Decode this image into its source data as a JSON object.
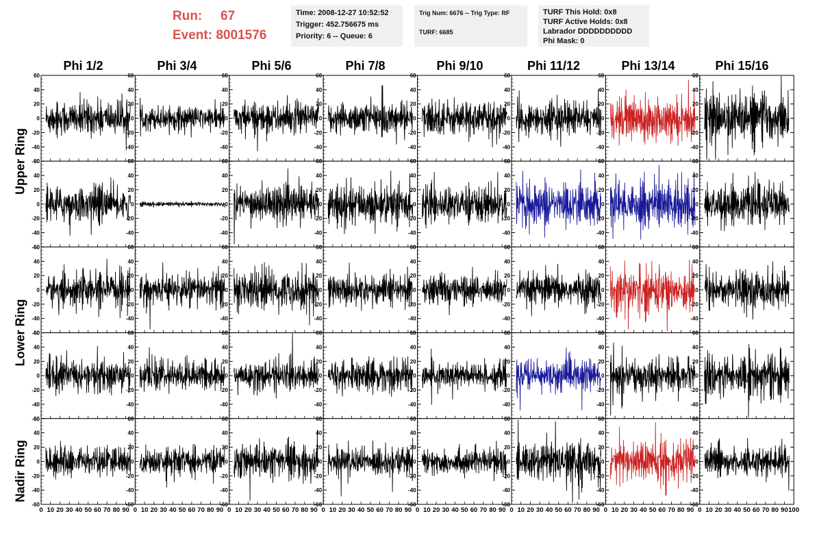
{
  "header": {
    "run_label": "Run:",
    "run_value": "67",
    "event_label": "Event:",
    "event_value": "8001576",
    "time": "Time: 2008-12-27 10:52:52",
    "trigger": "Trigger: 452.756675 ms",
    "priority": "Priority: 6 -- Queue: 6",
    "trig_num": "Trig Num: 6676 -- Trig Type: RF",
    "turf": "TURF: 6685",
    "turf_hold": "TURF This Hold: 0x8",
    "turf_active": "TURF Active Holds: 0x8",
    "labrador": "Labrador DDDDDDDDDD",
    "phi_mask": "Phi Mask: 0"
  },
  "columns": [
    "Phi 1/2",
    "Phi 3/4",
    "Phi 5/6",
    "Phi 7/8",
    "Phi 9/10",
    "Phi 11/12",
    "Phi 13/14",
    "Phi 15/16"
  ],
  "ring_labels": [
    "Upper Ring",
    "Lower Ring",
    "Nadir Ring"
  ],
  "colors": {
    "normal": "#000000",
    "triggered_red": "#cc2222",
    "triggered_blue": "#1a1a99",
    "run_text": "#d9534f"
  },
  "chart_data": {
    "type": "line",
    "rows": 5,
    "cols": 8,
    "ylim": [
      -60,
      60
    ],
    "xlim": [
      0,
      100
    ],
    "y_ticks": [
      -60,
      -40,
      -20,
      0,
      20,
      40,
      60
    ],
    "x_ticks": [
      0,
      10,
      20,
      30,
      40,
      50,
      60,
      70,
      80,
      90,
      100
    ],
    "x_tick_labels": [
      "0",
      "10",
      "20",
      "30",
      "40",
      "50",
      "60",
      "70",
      "80",
      "90",
      "100"
    ],
    "panel_colors": [
      [
        "normal",
        "normal",
        "normal",
        "normal",
        "normal",
        "normal",
        "triggered_red",
        "normal"
      ],
      [
        "normal",
        "normal",
        "normal",
        "normal",
        "normal",
        "triggered_blue",
        "triggered_blue",
        "normal"
      ],
      [
        "normal",
        "normal",
        "normal",
        "normal",
        "normal",
        "normal",
        "triggered_red",
        "normal"
      ],
      [
        "normal",
        "normal",
        "normal",
        "normal",
        "normal",
        "triggered_blue",
        "normal",
        "normal"
      ],
      [
        "normal",
        "normal",
        "normal",
        "normal",
        "normal",
        "normal",
        "triggered_red",
        "normal"
      ]
    ],
    "panel_amplitude": [
      [
        22,
        14,
        20,
        20,
        22,
        20,
        26,
        30
      ],
      [
        22,
        3,
        22,
        24,
        22,
        26,
        30,
        24
      ],
      [
        20,
        20,
        24,
        20,
        18,
        20,
        28,
        24
      ],
      [
        20,
        18,
        18,
        20,
        18,
        20,
        20,
        26
      ],
      [
        18,
        16,
        20,
        18,
        16,
        22,
        26,
        18
      ]
    ],
    "samples_per_trace": 260,
    "trace_x_range": [
      5,
      95
    ]
  }
}
